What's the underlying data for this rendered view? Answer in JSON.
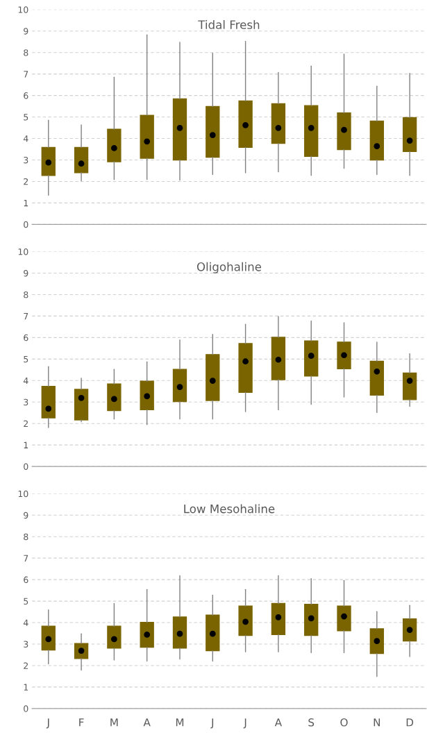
{
  "chart_data": [
    {
      "type": "box",
      "title": "Tidal Fresh",
      "categories": [
        null,
        null,
        null,
        null,
        null,
        null,
        null,
        null,
        null,
        null,
        null,
        null
      ],
      "color": "#7a6400",
      "ylim": [
        0,
        10
      ],
      "yticks": [
        0,
        1,
        2,
        3,
        4,
        5,
        6,
        7,
        8,
        9,
        10
      ],
      "grid": "y",
      "boxes": [
        {
          "low": 1.36,
          "q1": 2.28,
          "median": 2.88,
          "q3": 3.58,
          "high": 4.85
        },
        {
          "low": 2.03,
          "q1": 2.41,
          "median": 2.83,
          "q3": 3.58,
          "high": 4.63
        },
        {
          "low": 2.09,
          "q1": 2.92,
          "median": 3.55,
          "q3": 4.43,
          "high": 6.85
        },
        {
          "low": 2.09,
          "q1": 3.08,
          "median": 3.86,
          "q3": 5.08,
          "high": 8.82
        },
        {
          "low": 2.06,
          "q1": 3.0,
          "median": 4.49,
          "q3": 5.84,
          "high": 8.48
        },
        {
          "low": 2.32,
          "q1": 3.13,
          "median": 4.16,
          "q3": 5.49,
          "high": 7.97
        },
        {
          "low": 2.4,
          "q1": 3.59,
          "median": 4.62,
          "q3": 5.75,
          "high": 8.52
        },
        {
          "low": 2.45,
          "q1": 3.77,
          "median": 4.49,
          "q3": 5.62,
          "high": 7.07
        },
        {
          "low": 2.28,
          "q1": 3.17,
          "median": 4.49,
          "q3": 5.53,
          "high": 7.37
        },
        {
          "low": 2.61,
          "q1": 3.48,
          "median": 4.4,
          "q3": 5.19,
          "high": 7.93
        },
        {
          "low": 2.32,
          "q1": 3.0,
          "median": 3.64,
          "q3": 4.81,
          "high": 6.43
        },
        {
          "low": 2.28,
          "q1": 3.39,
          "median": 3.9,
          "q3": 4.97,
          "high": 7.03
        }
      ]
    },
    {
      "type": "box",
      "title": "Oligohaline",
      "categories": [
        null,
        null,
        null,
        null,
        null,
        null,
        null,
        null,
        null,
        null,
        null,
        null
      ],
      "color": "#7a6400",
      "ylim": [
        0,
        10
      ],
      "yticks": [
        0,
        1,
        2,
        3,
        4,
        5,
        6,
        7,
        8,
        9,
        10
      ],
      "grid": "y",
      "boxes": [
        {
          "low": 1.81,
          "q1": 2.26,
          "median": 2.69,
          "q3": 3.73,
          "high": 4.65
        },
        {
          "low": 2.08,
          "q1": 2.17,
          "median": 3.19,
          "q3": 3.59,
          "high": 4.11
        },
        {
          "low": 2.21,
          "q1": 2.6,
          "median": 3.14,
          "q3": 3.84,
          "high": 4.52
        },
        {
          "low": 1.95,
          "q1": 2.64,
          "median": 3.27,
          "q3": 3.97,
          "high": 4.87
        },
        {
          "low": 2.21,
          "q1": 3.02,
          "median": 3.7,
          "q3": 4.52,
          "high": 5.89
        },
        {
          "low": 2.21,
          "q1": 3.07,
          "median": 3.99,
          "q3": 5.21,
          "high": 6.15
        },
        {
          "low": 2.55,
          "q1": 3.45,
          "median": 4.89,
          "q3": 5.72,
          "high": 6.62
        },
        {
          "low": 2.64,
          "q1": 4.04,
          "median": 4.97,
          "q3": 6.01,
          "high": 6.98
        },
        {
          "low": 2.89,
          "q1": 4.21,
          "median": 5.15,
          "q3": 5.84,
          "high": 6.77
        },
        {
          "low": 3.23,
          "q1": 4.55,
          "median": 5.18,
          "q3": 5.79,
          "high": 6.69
        },
        {
          "low": 2.51,
          "q1": 3.32,
          "median": 4.42,
          "q3": 4.9,
          "high": 5.79
        },
        {
          "low": 2.8,
          "q1": 3.11,
          "median": 3.99,
          "q3": 4.35,
          "high": 5.25
        }
      ]
    },
    {
      "type": "box",
      "title": "Low Mesohaline",
      "categories": [
        "J",
        "F",
        "M",
        "A",
        "M",
        "J",
        "J",
        "A",
        "S",
        "O",
        "N",
        "D"
      ],
      "color": "#7a6400",
      "ylim": [
        0,
        10
      ],
      "yticks": [
        0,
        1,
        2,
        3,
        4,
        5,
        6,
        7,
        8,
        9,
        10
      ],
      "grid": "y",
      "boxes": [
        {
          "low": 2.08,
          "q1": 2.72,
          "median": 3.23,
          "q3": 3.83,
          "high": 4.59
        },
        {
          "low": 1.79,
          "q1": 2.33,
          "median": 2.69,
          "q3": 3.03,
          "high": 3.48
        },
        {
          "low": 2.26,
          "q1": 2.81,
          "median": 3.23,
          "q3": 3.83,
          "high": 4.89
        },
        {
          "low": 2.21,
          "q1": 2.85,
          "median": 3.44,
          "q3": 4.01,
          "high": 5.54
        },
        {
          "low": 2.3,
          "q1": 2.81,
          "median": 3.48,
          "q3": 4.26,
          "high": 6.18
        },
        {
          "low": 2.21,
          "q1": 2.69,
          "median": 3.48,
          "q3": 4.35,
          "high": 5.28
        },
        {
          "low": 2.64,
          "q1": 3.4,
          "median": 4.04,
          "q3": 4.77,
          "high": 5.54
        },
        {
          "low": 2.64,
          "q1": 3.44,
          "median": 4.25,
          "q3": 4.89,
          "high": 6.18
        },
        {
          "low": 2.6,
          "q1": 3.4,
          "median": 4.2,
          "q3": 4.85,
          "high": 6.05
        },
        {
          "low": 2.6,
          "q1": 3.62,
          "median": 4.29,
          "q3": 4.77,
          "high": 5.96
        },
        {
          "low": 1.49,
          "q1": 2.56,
          "median": 3.14,
          "q3": 3.71,
          "high": 4.51
        },
        {
          "low": 2.42,
          "q1": 3.14,
          "median": 3.66,
          "q3": 4.17,
          "high": 4.8
        }
      ]
    }
  ]
}
